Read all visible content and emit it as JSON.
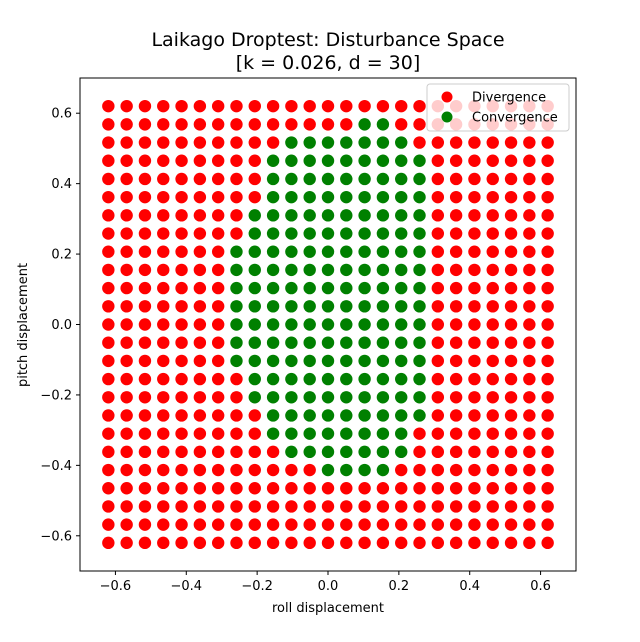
{
  "chart_data": {
    "type": "scatter",
    "title_line1": "Laikago Droptest: Disturbance Space",
    "title_line2": "[k = 0.026, d = 30]",
    "xlabel": "roll displacement",
    "ylabel": "pitch displacement",
    "xlim": [
      -0.7,
      0.7
    ],
    "ylim": [
      -0.7,
      0.7
    ],
    "x_ticks": [
      "−0.6",
      "−0.4",
      "−0.2",
      "0.0",
      "0.2",
      "0.4",
      "0.6"
    ],
    "y_ticks": [
      "−0.6",
      "−0.4",
      "−0.2",
      "0.0",
      "0.2",
      "0.4",
      "0.6"
    ],
    "x_tick_values": [
      -0.6,
      -0.4,
      -0.2,
      0.0,
      0.2,
      0.4,
      0.6
    ],
    "y_tick_values": [
      -0.6,
      -0.4,
      -0.2,
      0.0,
      0.2,
      0.4,
      0.6
    ],
    "grid": false,
    "legend_position": "top-right",
    "series": [
      {
        "name": "Divergence",
        "color": "#ff0000"
      },
      {
        "name": "Convergence",
        "color": "#008000"
      }
    ],
    "grid_points": {
      "n": 25,
      "x_range": [
        -0.62,
        0.62
      ],
      "y_range": [
        -0.62,
        0.62
      ]
    },
    "convergence_rows": [
      {
        "y": 0.56,
        "x_min": 0.1,
        "x_max": 0.16
      },
      {
        "y": 0.51,
        "x_min": -0.1,
        "x_max": 0.21
      },
      {
        "y": 0.46,
        "x_min": -0.16,
        "x_max": 0.26
      },
      {
        "y": 0.41,
        "x_min": -0.16,
        "x_max": 0.26
      },
      {
        "y": 0.36,
        "x_min": -0.16,
        "x_max": 0.26
      },
      {
        "y": 0.31,
        "x_min": -0.21,
        "x_max": 0.26
      },
      {
        "y": 0.26,
        "x_min": -0.21,
        "x_max": 0.26
      },
      {
        "y": 0.21,
        "x_min": -0.26,
        "x_max": 0.26
      },
      {
        "y": 0.16,
        "x_min": -0.26,
        "x_max": 0.26
      },
      {
        "y": 0.1,
        "x_min": -0.26,
        "x_max": 0.26
      },
      {
        "y": 0.05,
        "x_min": -0.26,
        "x_max": 0.26
      },
      {
        "y": 0.0,
        "x_min": -0.26,
        "x_max": 0.26
      },
      {
        "y": -0.05,
        "x_min": -0.26,
        "x_max": 0.26
      },
      {
        "y": -0.1,
        "x_min": -0.26,
        "x_max": 0.26
      },
      {
        "y": -0.16,
        "x_min": -0.21,
        "x_max": 0.26
      },
      {
        "y": -0.21,
        "x_min": -0.21,
        "x_max": 0.26
      },
      {
        "y": -0.26,
        "x_min": -0.16,
        "x_max": 0.26
      },
      {
        "y": -0.31,
        "x_min": -0.16,
        "x_max": 0.21
      },
      {
        "y": -0.36,
        "x_min": -0.1,
        "x_max": 0.21
      },
      {
        "y": -0.41,
        "x_min": 0.0,
        "x_max": 0.16
      }
    ]
  }
}
